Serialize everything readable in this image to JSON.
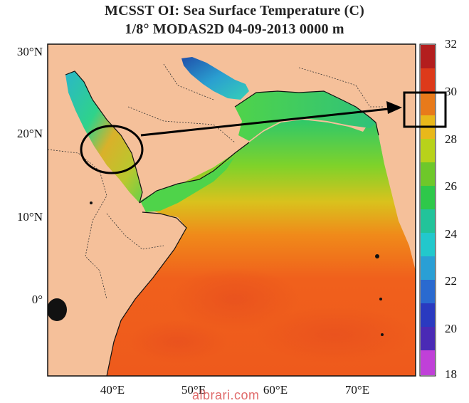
{
  "title": {
    "line1": "MCSST OI:  Sea Surface Temperature (C)",
    "line2": "1/8° MODAS2D 04-09-2013 0000 m"
  },
  "lat_labels": [
    "30°N",
    "20°N",
    "10°N",
    "0°"
  ],
  "lon_labels": [
    "40°E",
    "50°E",
    "60°E",
    "70°E"
  ],
  "colorbar": {
    "labels": [
      "32",
      "30",
      "28",
      "26",
      "24",
      "22",
      "20",
      "18"
    ],
    "min": 18,
    "max": 32,
    "unit": "C"
  },
  "watermark": "albrari.com",
  "colors": {
    "land": "#f5c09a",
    "annotation": "#000000"
  }
}
